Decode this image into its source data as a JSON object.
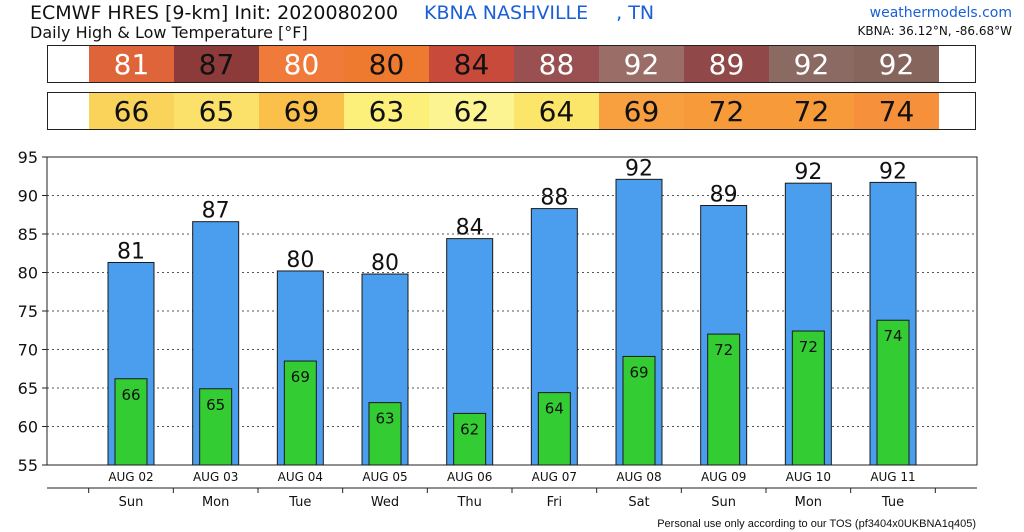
{
  "header": {
    "title": "ECMWF HRES [9-km] Init: 2020080200",
    "station": "KBNA NASHVILLE",
    "state": ", TN",
    "subtitle": "Daily High & Low Temperature [°F]",
    "site": "weathermodels.com",
    "coords": "KBNA: 36.12°N, -86.68°W"
  },
  "footer": "Personal use only according to our TOS (pf3404x0UKBNA1q405)",
  "colors": {
    "bar_high": "#4a9eed",
    "bar_low": "#33cc33",
    "high_cells": [
      "#e0643a",
      "#8c3a3a",
      "#f07a3a",
      "#ee7a30",
      "#c84a3a",
      "#9a5050",
      "#9a6e66",
      "#904848",
      "#8a6a62",
      "#85655c"
    ],
    "low_cells": [
      "#fad35a",
      "#fbe06a",
      "#fac04a",
      "#fdf07a",
      "#fcf490",
      "#fce66a",
      "#f8a040",
      "#f79a3a",
      "#f69a3a",
      "#f6903a"
    ]
  },
  "chart_data": {
    "type": "bar",
    "categories": [
      "AUG 02",
      "AUG 03",
      "AUG 04",
      "AUG 05",
      "AUG 06",
      "AUG 07",
      "AUG 08",
      "AUG 09",
      "AUG 10",
      "AUG 11"
    ],
    "weekdays": [
      "Sun",
      "Mon",
      "Tue",
      "Wed",
      "Thu",
      "Fri",
      "Sat",
      "Sun",
      "Mon",
      "Tue"
    ],
    "series": [
      {
        "values": [
          81,
          87,
          80,
          80,
          84,
          88,
          92,
          89,
          92,
          92
        ],
        "bar_values": [
          81.3,
          86.6,
          80.2,
          79.8,
          84.4,
          88.3,
          92.1,
          88.7,
          91.6,
          91.7
        ]
      },
      {
        "values": [
          66,
          65,
          69,
          63,
          62,
          64,
          69,
          72,
          72,
          74
        ],
        "bar_values": [
          66.2,
          64.9,
          68.5,
          63.1,
          61.7,
          64.4,
          69.1,
          72.0,
          72.4,
          73.8
        ]
      }
    ],
    "ylim": [
      55,
      95
    ],
    "yticks": [
      55,
      60,
      65,
      70,
      75,
      80,
      85,
      90,
      95
    ],
    "grid": true
  }
}
